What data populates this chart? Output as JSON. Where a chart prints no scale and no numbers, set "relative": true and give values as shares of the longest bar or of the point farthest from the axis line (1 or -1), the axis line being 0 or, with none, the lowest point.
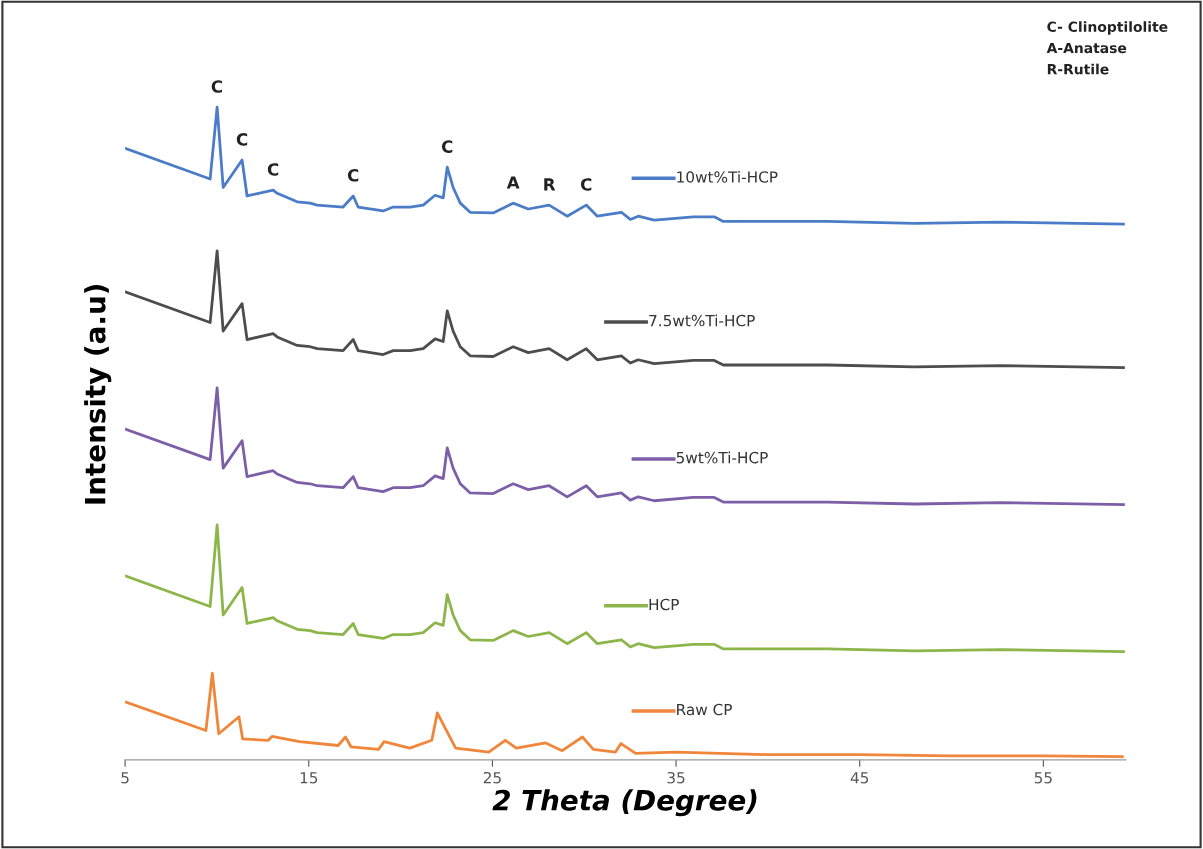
{
  "chart_data": {
    "type": "line",
    "relative": true,
    "xlabel": "2 Theta (Degree)",
    "ylabel": "Intensity (a.u)",
    "xlim": [
      5,
      59.5
    ],
    "xticks": [
      5,
      15,
      25,
      35,
      45,
      55
    ],
    "grid": false,
    "legend": "right",
    "marker": "none",
    "line_style": "solid",
    "annotations": [
      "C- Clinoptilolite",
      "A-Anatase",
      "R-Rutile",
      {
        "text": "C",
        "x": 10.0,
        "y": 1.0
      },
      {
        "text": "C",
        "x": 11.37,
        "y": 0.919
      },
      {
        "text": "C",
        "x": 13.06,
        "y": 0.873
      },
      {
        "text": "C",
        "x": 17.42,
        "y": 0.864
      },
      {
        "text": "C",
        "x": 22.54,
        "y": 0.908
      },
      {
        "text": "A",
        "x": 26.13,
        "y": 0.853
      },
      {
        "text": "R",
        "x": 28.09,
        "y": 0.85
      },
      {
        "text": "C",
        "x": 30.11,
        "y": 0.85
      }
    ],
    "x": [
      5.0,
      9.63,
      10.01,
      10.34,
      11.37,
      11.64,
      13.06,
      13.28,
      14.37,
      15.08,
      15.46,
      16.87,
      17.42,
      17.69,
      19.05,
      19.6,
      20.52,
      21.23,
      21.88,
      22.32,
      22.54,
      22.86,
      23.25,
      23.79,
      25.04,
      26.13,
      26.95,
      28.09,
      29.07,
      30.11,
      30.71,
      32.02,
      32.51,
      32.94,
      33.81,
      35.94,
      37.08,
      37.57,
      43.24,
      47.97,
      52.71,
      59.36
    ],
    "series": [
      {
        "name": "10wt%Ti-HCP",
        "color": "#4a7cc7",
        "values": [
          0.937,
          0.89,
          1.0,
          0.877,
          0.919,
          0.864,
          0.873,
          0.868,
          0.855,
          0.853,
          0.85,
          0.847,
          0.864,
          0.847,
          0.841,
          0.847,
          0.847,
          0.85,
          0.865,
          0.861,
          0.908,
          0.877,
          0.853,
          0.839,
          0.838,
          0.853,
          0.844,
          0.85,
          0.833,
          0.85,
          0.833,
          0.839,
          0.828,
          0.833,
          0.827,
          0.832,
          0.832,
          0.825,
          0.825,
          0.822,
          0.824,
          0.821
        ]
      },
      {
        "name": "7.5wt%Ti-HCP",
        "color": "#4d4d4d",
        "values": [
          0.717,
          0.67,
          0.78,
          0.657,
          0.699,
          0.644,
          0.653,
          0.648,
          0.635,
          0.633,
          0.63,
          0.627,
          0.644,
          0.627,
          0.621,
          0.627,
          0.627,
          0.63,
          0.645,
          0.641,
          0.688,
          0.657,
          0.633,
          0.619,
          0.618,
          0.633,
          0.624,
          0.63,
          0.613,
          0.63,
          0.613,
          0.619,
          0.608,
          0.613,
          0.607,
          0.612,
          0.612,
          0.605,
          0.605,
          0.602,
          0.604,
          0.601
        ]
      },
      {
        "name": "5wt%Ti-HCP",
        "color": "#7d5fa8",
        "values": [
          0.507,
          0.46,
          0.57,
          0.447,
          0.489,
          0.434,
          0.443,
          0.438,
          0.425,
          0.423,
          0.42,
          0.417,
          0.434,
          0.417,
          0.411,
          0.417,
          0.417,
          0.42,
          0.435,
          0.431,
          0.478,
          0.447,
          0.423,
          0.409,
          0.408,
          0.423,
          0.414,
          0.42,
          0.403,
          0.42,
          0.403,
          0.409,
          0.398,
          0.403,
          0.397,
          0.402,
          0.402,
          0.395,
          0.395,
          0.392,
          0.394,
          0.391
        ]
      },
      {
        "name": "HCP",
        "color": "#8db64a",
        "values": [
          0.282,
          0.235,
          0.36,
          0.222,
          0.264,
          0.209,
          0.218,
          0.213,
          0.2,
          0.198,
          0.195,
          0.192,
          0.209,
          0.192,
          0.186,
          0.192,
          0.192,
          0.195,
          0.21,
          0.206,
          0.253,
          0.222,
          0.198,
          0.184,
          0.183,
          0.198,
          0.189,
          0.195,
          0.178,
          0.195,
          0.178,
          0.184,
          0.173,
          0.178,
          0.172,
          0.177,
          0.177,
          0.17,
          0.17,
          0.167,
          0.169,
          0.166
        ]
      },
      {
        "name": "Raw CP",
        "color": "#f0863a",
        "x": [
          5.0,
          9.4,
          9.75,
          10.1,
          11.2,
          11.4,
          12.8,
          13.0,
          14.5,
          16.6,
          17.0,
          17.3,
          18.8,
          19.1,
          20.5,
          21.7,
          22.0,
          22.4,
          23.0,
          24.8,
          25.7,
          26.3,
          27.9,
          28.8,
          29.9,
          30.5,
          31.7,
          32.0,
          32.8,
          35.0,
          40.0,
          45.0,
          50.0,
          55.0,
          59.3
        ],
        "values": [
          0.089,
          0.045,
          0.133,
          0.04,
          0.066,
          0.032,
          0.03,
          0.036,
          0.028,
          0.022,
          0.035,
          0.02,
          0.016,
          0.028,
          0.018,
          0.03,
          0.072,
          0.05,
          0.018,
          0.012,
          0.03,
          0.018,
          0.026,
          0.014,
          0.035,
          0.016,
          0.012,
          0.025,
          0.01,
          0.012,
          0.008,
          0.008,
          0.006,
          0.006,
          0.005
        ]
      }
    ]
  }
}
